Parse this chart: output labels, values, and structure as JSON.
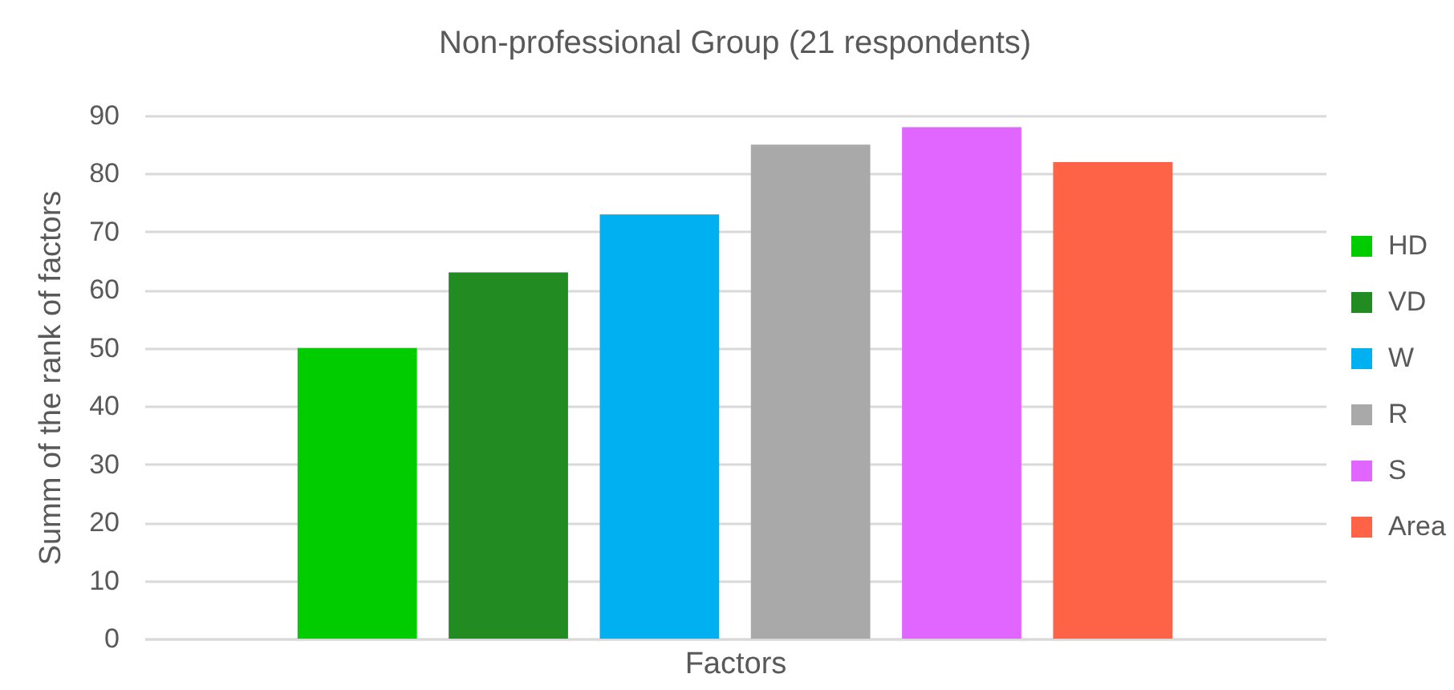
{
  "chart_data": {
    "type": "bar",
    "title": "Non-professional Group (21 respondents)",
    "xlabel": "Factors",
    "ylabel": "Summ of the rank of factors",
    "categories": [
      null
    ],
    "series": [
      {
        "name": "HD",
        "color": "#00cc00",
        "values": [
          50
        ]
      },
      {
        "name": "VD",
        "color": "#228b22",
        "values": [
          63
        ]
      },
      {
        "name": "W",
        "color": "#00b0f0",
        "values": [
          73
        ]
      },
      {
        "name": "R",
        "color": "#a9a9a9",
        "values": [
          85
        ]
      },
      {
        "name": "S",
        "color": "#e066ff",
        "values": [
          88
        ]
      },
      {
        "name": "Area",
        "color": "#ff6347",
        "values": [
          82
        ]
      }
    ],
    "ylim": [
      0,
      90
    ],
    "yticks": [
      0,
      10,
      20,
      30,
      40,
      50,
      60,
      70,
      80,
      90
    ],
    "grid": "y",
    "legend": "right"
  }
}
